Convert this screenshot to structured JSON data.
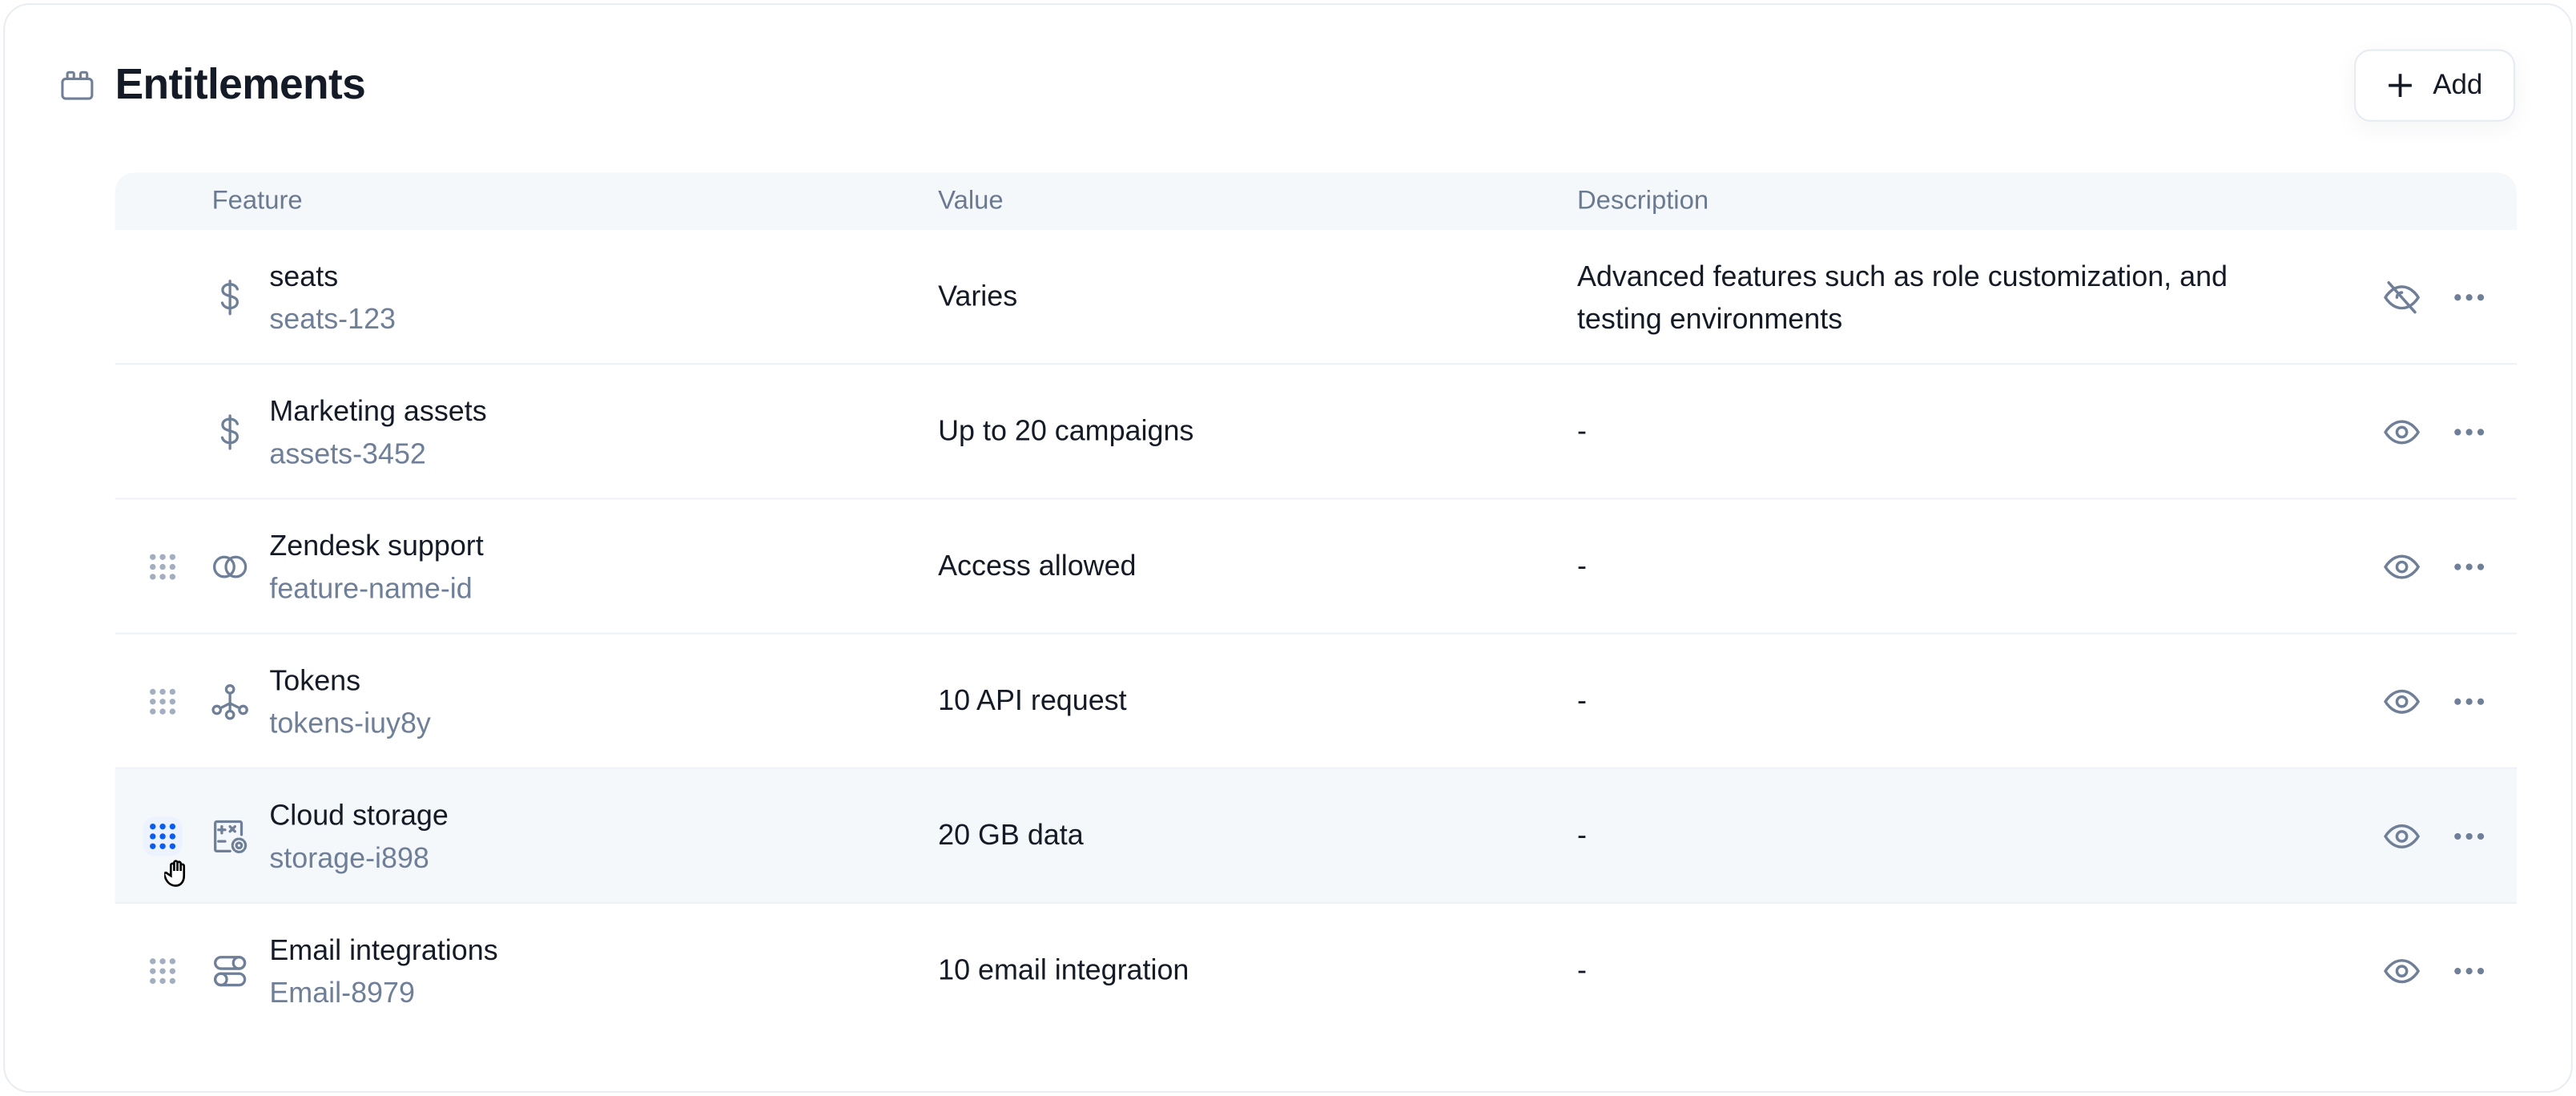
{
  "header": {
    "title": "Entitlements",
    "title_icon": "calendar-blocks-icon",
    "add_label": "Add"
  },
  "table": {
    "columns": [
      "Feature",
      "Value",
      "Description"
    ],
    "rows": [
      {
        "name": "seats",
        "id": "seats-123",
        "value": "Varies",
        "description": "Advanced features such as role customization, and testing environments",
        "icon": "dollar-icon",
        "draggable": false,
        "visible": false,
        "active": false
      },
      {
        "name": "Marketing assets",
        "id": "assets-3452",
        "value": "Up to 20 campaigns",
        "description": "-",
        "icon": "dollar-icon",
        "draggable": false,
        "visible": true,
        "active": false
      },
      {
        "name": "Zendesk support",
        "id": "feature-name-id",
        "value": "Access allowed",
        "description": "-",
        "icon": "circles-icon",
        "draggable": true,
        "visible": true,
        "active": false
      },
      {
        "name": "Tokens",
        "id": "tokens-iuy8y",
        "value": "10 API request",
        "description": "-",
        "icon": "network-icon",
        "draggable": true,
        "visible": true,
        "active": false
      },
      {
        "name": "Cloud storage",
        "id": "storage-i898",
        "value": "20 GB data",
        "description": "-",
        "icon": "calculator-gear-icon",
        "draggable": true,
        "visible": true,
        "active": true
      },
      {
        "name": "Email integrations",
        "id": "Email-8979",
        "value": "10 email integration",
        "description": "-",
        "icon": "toggles-icon",
        "draggable": true,
        "visible": true,
        "active": false
      }
    ]
  },
  "colors": {
    "accent": "#0b5cf0",
    "muted": "#6f7f98",
    "text": "#151b26",
    "header_bg": "#f5f8fb"
  }
}
